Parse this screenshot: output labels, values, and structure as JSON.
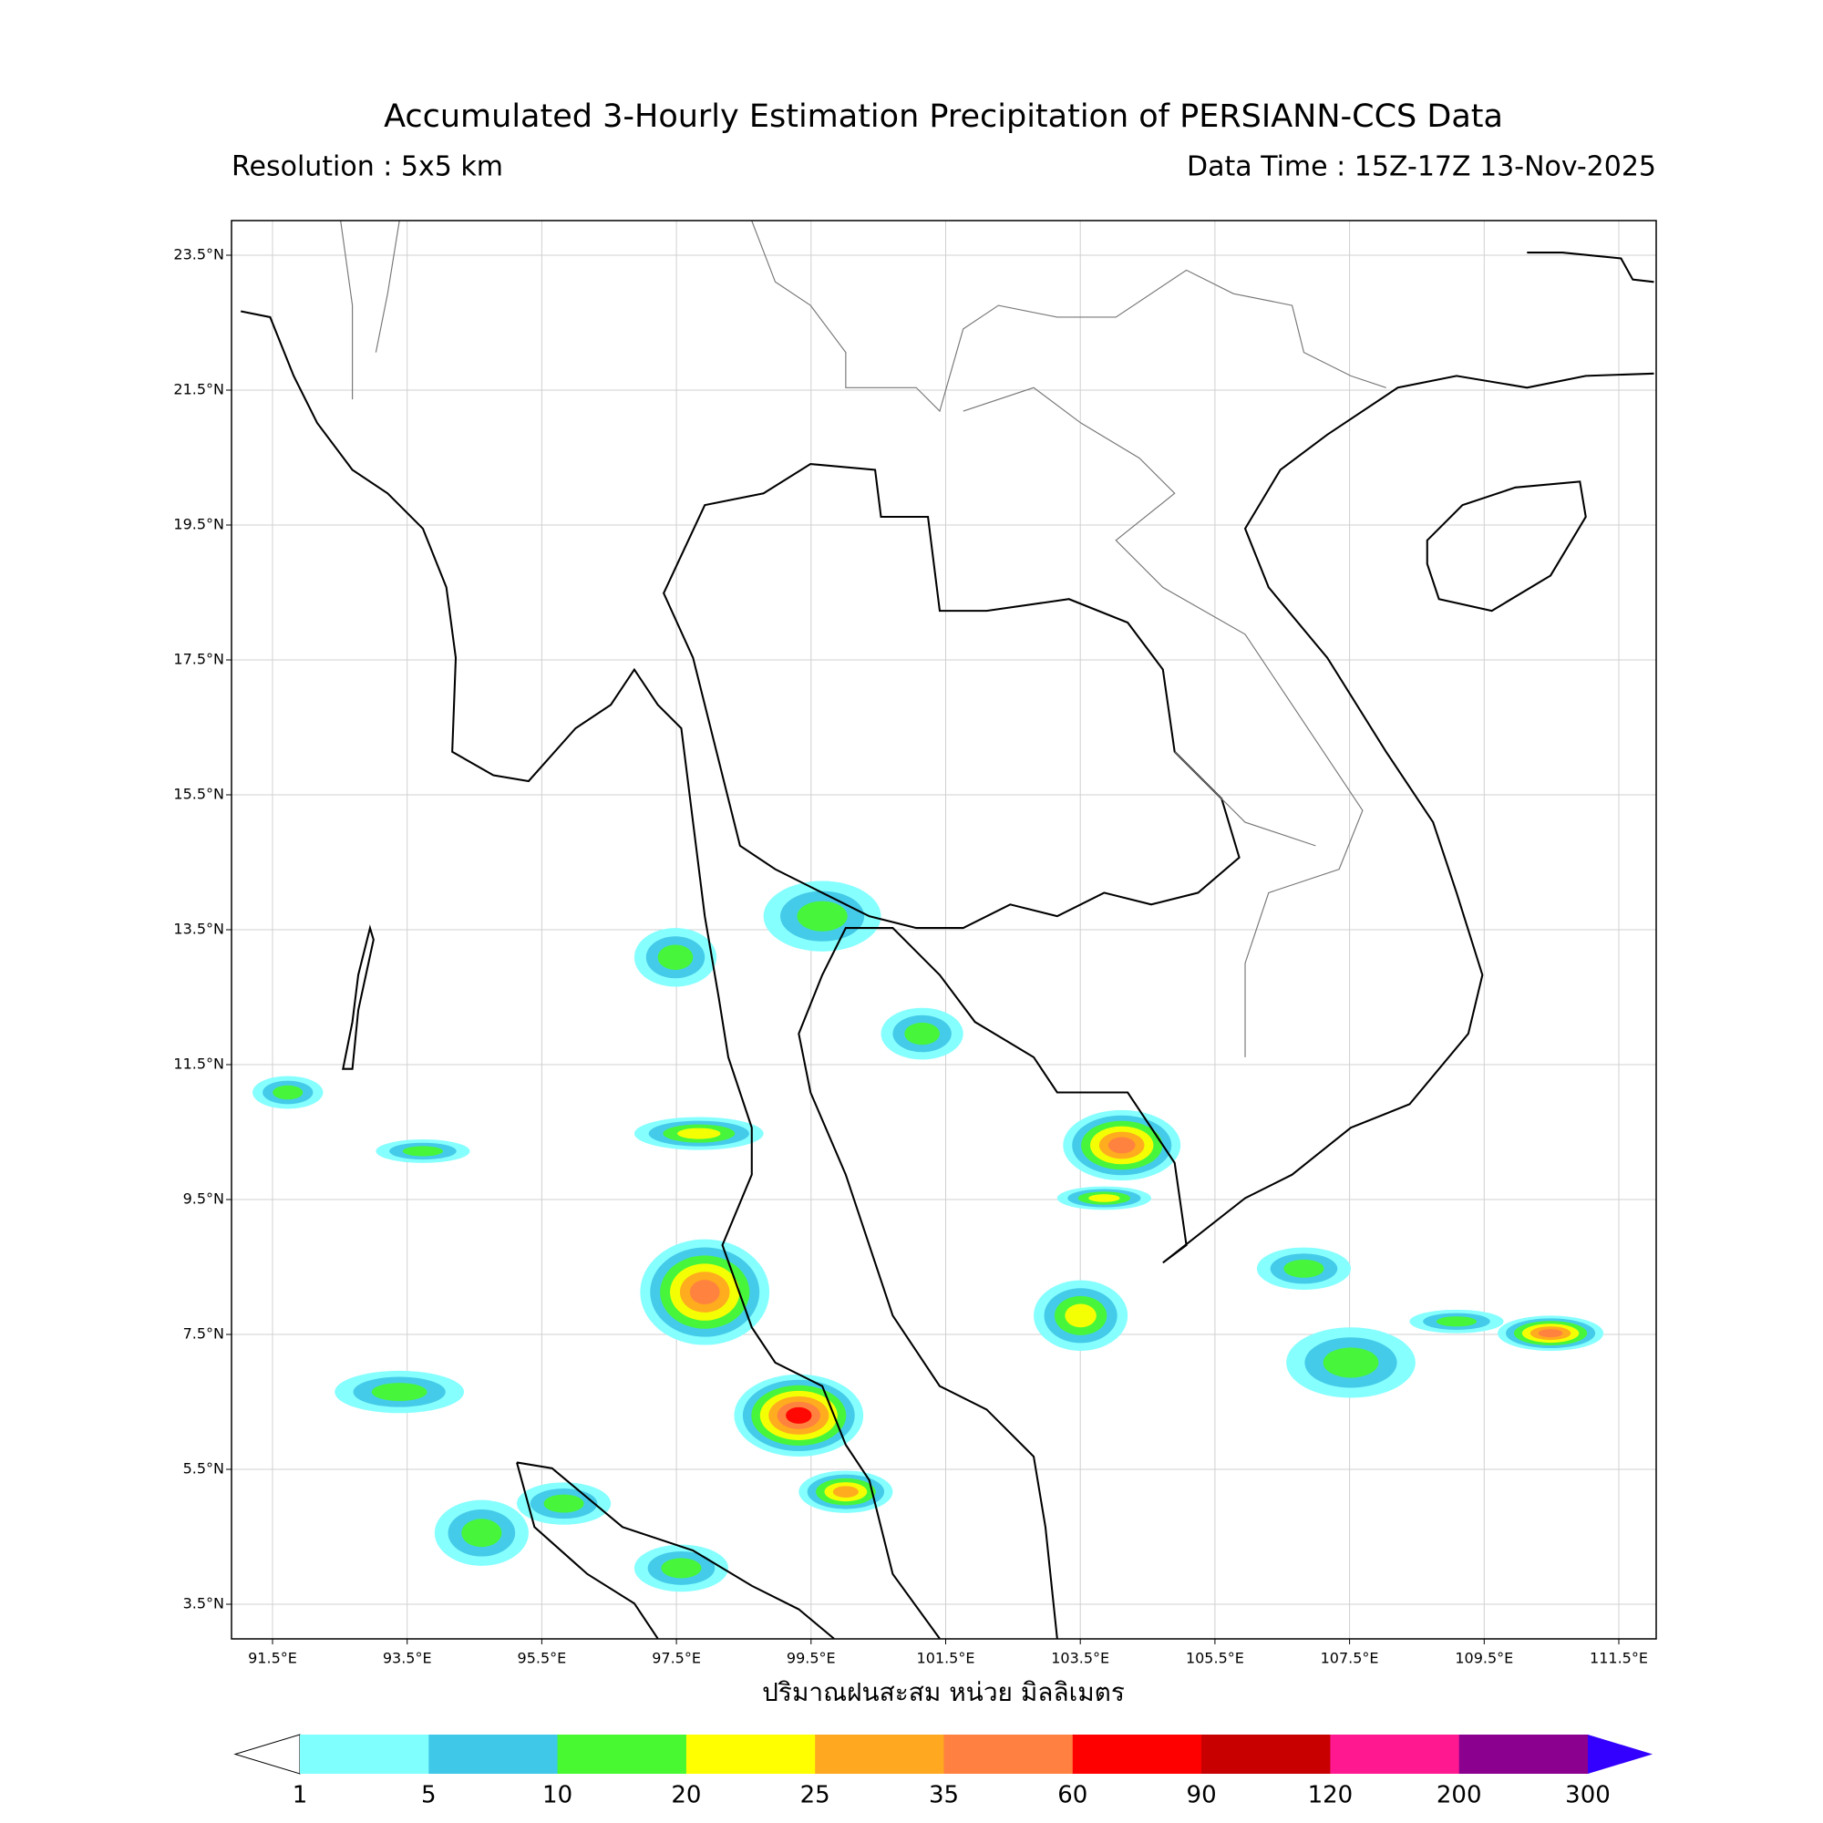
{
  "header": {
    "title": "Accumulated 3-Hourly Estimation Precipitation of PERSIANN-CCS Data",
    "resolution": "Resolution : 5x5 km",
    "data_time": "Data Time : 15Z-17Z 13-Nov-2025"
  },
  "map": {
    "lon_ticks": [
      "91.5°E",
      "93.5°E",
      "95.5°E",
      "97.5°E",
      "99.5°E",
      "101.5°E",
      "103.5°E",
      "105.5°E",
      "107.5°E",
      "109.5°E",
      "111.5°E"
    ],
    "lat_ticks": [
      "23.5°N",
      "21.5°N",
      "19.5°N",
      "17.5°N",
      "15.5°N",
      "13.5°N",
      "11.5°N",
      "9.5°N",
      "7.5°N",
      "5.5°N",
      "3.5°N"
    ],
    "x_label": "ปริมาณฝนสะสม หน่วย มิลลิเมตร"
  },
  "colorbar": {
    "levels": [
      1,
      5,
      10,
      20,
      25,
      35,
      60,
      90,
      120,
      200,
      300
    ],
    "under_color": "#ffffff",
    "colors": [
      "#80ffff",
      "#40c8e8",
      "#48f830",
      "#ffff00",
      "#ffa820",
      "#ff8040",
      "#ff0000",
      "#c80000",
      "#ff1890",
      "#8c0090"
    ],
    "over_color": "#3300ff"
  }
}
